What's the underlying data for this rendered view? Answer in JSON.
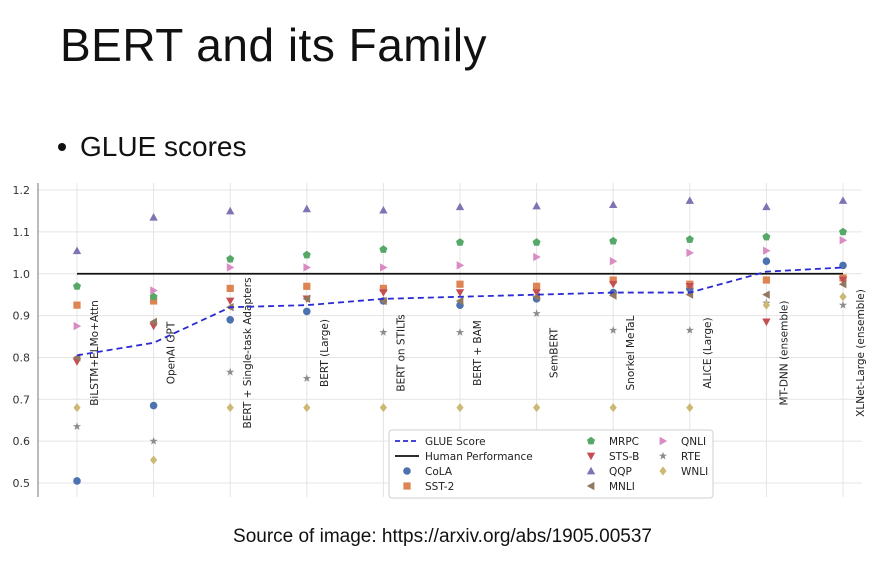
{
  "slide": {
    "title": "BERT and its Family",
    "bullet": "GLUE scores",
    "caption": "Source of image: https://arxiv.org/abs/1905.00537"
  },
  "chart_data": {
    "type": "scatter",
    "categories": [
      "BiLSTM+ELMo+Attn",
      "OpenAI GPT",
      "BERT + Single-task Adapters",
      "BERT (Large)",
      "BERT on STILTs",
      "BERT + BAM",
      "SemBERT",
      "Snorkel MeTaL",
      "ALICE (Large)",
      "MT-DNN (ensemble)",
      "XLNet-Large (ensemble)"
    ],
    "ylim": [
      0.48,
      1.22
    ],
    "yticks": [
      0.5,
      0.6,
      0.7,
      0.8,
      0.9,
      1.0,
      1.1,
      1.2
    ],
    "grid": true,
    "legend_position": "lower-right",
    "human_performance": 1.0,
    "glue_score": [
      0.805,
      0.835,
      0.92,
      0.925,
      0.94,
      0.945,
      0.95,
      0.955,
      0.955,
      1.005,
      1.015
    ],
    "series": [
      {
        "name": "CoLA",
        "marker": "circle",
        "color": "#4c72b0",
        "values": [
          0.505,
          0.685,
          0.89,
          0.91,
          0.935,
          0.925,
          0.94,
          0.955,
          0.965,
          1.03,
          1.02
        ]
      },
      {
        "name": "SST-2",
        "marker": "square",
        "color": "#dd8452",
        "values": [
          0.925,
          0.935,
          0.965,
          0.97,
          0.965,
          0.975,
          0.97,
          0.985,
          0.975,
          0.985,
          0.99
        ]
      },
      {
        "name": "MRPC",
        "marker": "pentagon",
        "color": "#55a868",
        "values": [
          0.97,
          0.945,
          1.035,
          1.045,
          1.058,
          1.075,
          1.075,
          1.078,
          1.082,
          1.088,
          1.1
        ]
      },
      {
        "name": "STS-B",
        "marker": "triangle-down",
        "color": "#c44e52",
        "values": [
          0.79,
          0.875,
          0.935,
          0.94,
          0.955,
          0.955,
          0.955,
          0.975,
          0.97,
          0.885,
          0.985
        ]
      },
      {
        "name": "QQP",
        "marker": "triangle-up",
        "color": "#8172b3",
        "values": [
          1.055,
          1.135,
          1.15,
          1.155,
          1.152,
          1.16,
          1.162,
          1.165,
          1.175,
          1.16,
          1.175
        ]
      },
      {
        "name": "MNLI",
        "marker": "triangle-left",
        "color": "#937860",
        "values": [
          0.8,
          0.885,
          0.92,
          0.94,
          0.935,
          0.935,
          0.945,
          0.948,
          0.95,
          0.95,
          0.975
        ]
      },
      {
        "name": "QNLI",
        "marker": "triangle-right",
        "color": "#da8bc3",
        "values": [
          0.875,
          0.96,
          1.015,
          1.015,
          1.015,
          1.02,
          1.04,
          1.03,
          1.05,
          1.055,
          1.08
        ]
      },
      {
        "name": "RTE",
        "marker": "star",
        "color": "#8c8c8c",
        "values": [
          0.635,
          0.6,
          0.765,
          0.75,
          0.86,
          0.86,
          0.905,
          0.865,
          0.865,
          0.93,
          0.925
        ]
      },
      {
        "name": "WNLI",
        "marker": "diamond",
        "color": "#ccb974",
        "values": [
          0.68,
          0.555,
          0.68,
          0.68,
          0.68,
          0.68,
          0.68,
          0.68,
          0.68,
          0.925,
          0.945
        ]
      }
    ],
    "legend": [
      {
        "label": "GLUE Score",
        "marker": "dashed-line",
        "color": "#2b2bd4"
      },
      {
        "label": "Human Performance",
        "marker": "solid-line",
        "color": "#111111"
      },
      {
        "label": "CoLA",
        "marker": "circle",
        "color": "#4c72b0"
      },
      {
        "label": "SST-2",
        "marker": "square",
        "color": "#dd8452"
      },
      {
        "label": "MRPC",
        "marker": "pentagon",
        "color": "#55a868"
      },
      {
        "label": "STS-B",
        "marker": "triangle-down",
        "color": "#c44e52"
      },
      {
        "label": "QQP",
        "marker": "triangle-up",
        "color": "#8172b3"
      },
      {
        "label": "MNLI",
        "marker": "triangle-left",
        "color": "#937860"
      },
      {
        "label": "QNLI",
        "marker": "triangle-right",
        "color": "#da8bc3"
      },
      {
        "label": "RTE",
        "marker": "star",
        "color": "#8c8c8c"
      },
      {
        "label": "WNLI",
        "marker": "diamond",
        "color": "#ccb974"
      }
    ]
  }
}
